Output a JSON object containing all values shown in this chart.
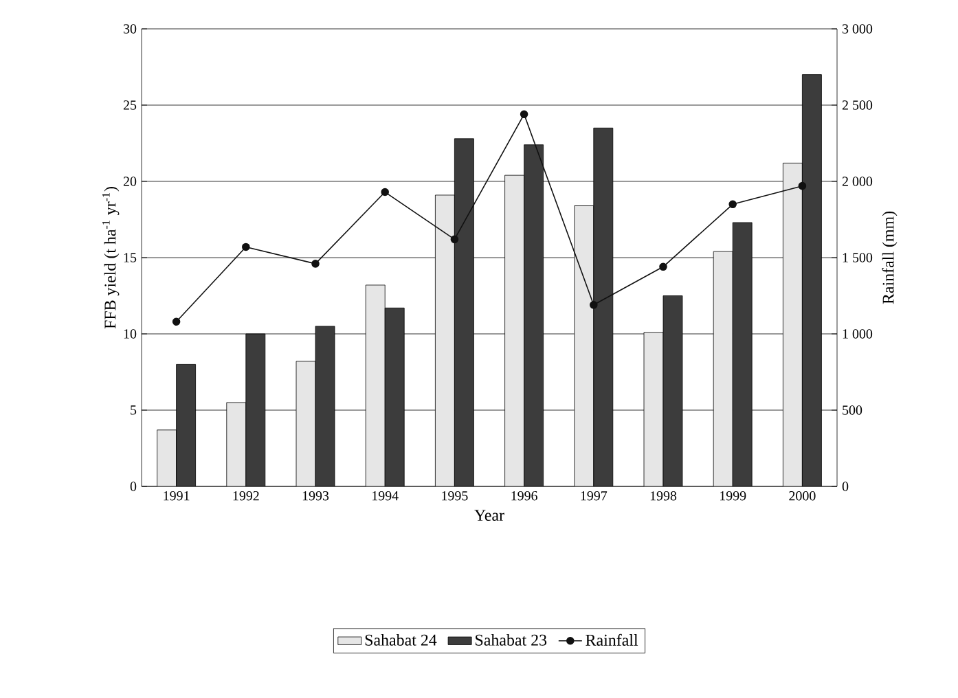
{
  "chart_data": {
    "type": "bar",
    "xlabel": "Year",
    "ylabel": "FFB yield (t ha$^{-1}$ yr$^{-1}$)",
    "y2label": "Rainfall (mm)",
    "categories": [
      "1991",
      "1992",
      "1993",
      "1994",
      "1995",
      "1996",
      "1997",
      "1998",
      "1999",
      "2000"
    ],
    "series": [
      {
        "name": "Sahabat 24",
        "color": "#e6e6e6",
        "values": [
          3.7,
          5.5,
          8.2,
          13.2,
          19.1,
          20.4,
          18.4,
          10.1,
          15.4,
          21.2
        ]
      },
      {
        "name": "Sahabat 23",
        "color": "#3c3c3c",
        "values": [
          8.0,
          10.0,
          10.5,
          11.7,
          22.8,
          22.4,
          23.5,
          12.5,
          17.3,
          27.0
        ]
      },
      {
        "name": "Rainfall",
        "type": "line",
        "axis": "y2",
        "color": "#111111",
        "values": [
          1080,
          1570,
          1460,
          1930,
          1620,
          2440,
          1190,
          1440,
          1850,
          1970
        ]
      }
    ],
    "ylim": [
      0,
      30
    ],
    "yticks": [
      0,
      5,
      10,
      15,
      20,
      25,
      30
    ],
    "y2lim": [
      0,
      3000
    ],
    "y2ticks": [
      0,
      500,
      {
        "value": 1000,
        "label": "1 000"
      },
      {
        "value": 1500,
        "label": "1 500"
      },
      {
        "value": 2000,
        "label": "2 000"
      },
      {
        "value": 2500,
        "label": "2 500"
      },
      {
        "value": 3000,
        "label": "3 000"
      }
    ],
    "grid": "y",
    "legend": "bottom",
    "marker": "circle",
    "line_style": "solid"
  }
}
